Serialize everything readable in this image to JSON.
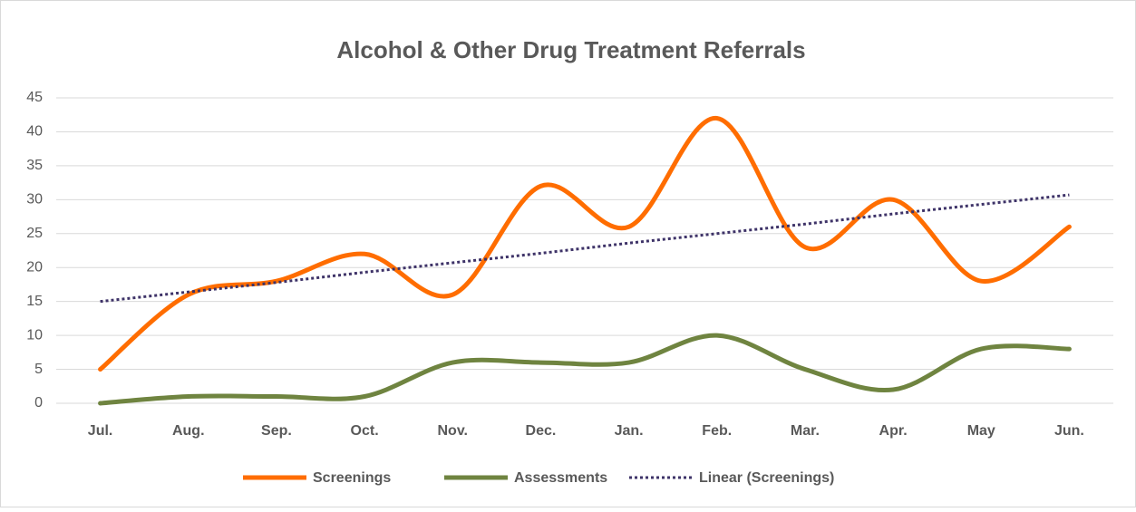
{
  "chart_data": {
    "type": "line",
    "title": "Alcohol & Other Drug Treatment Referrals",
    "categories": [
      "Jul.",
      "Aug.",
      "Sep.",
      "Oct.",
      "Nov.",
      "Dec.",
      "Jan.",
      "Feb.",
      "Mar.",
      "Apr.",
      "May",
      "Jun."
    ],
    "series": [
      {
        "name": "Screenings",
        "color": "#ff6d00",
        "style": "solid",
        "smooth": true,
        "values": [
          5,
          16,
          18,
          22,
          16,
          32,
          26,
          42,
          23,
          30,
          18,
          26
        ]
      },
      {
        "name": "Assessments",
        "color": "#6f8440",
        "style": "solid",
        "smooth": true,
        "values": [
          0,
          1,
          1,
          1,
          6,
          6,
          6,
          10,
          5,
          2,
          8,
          8
        ]
      },
      {
        "name": "Linear (Screenings)",
        "color": "#3e3368",
        "style": "dotted",
        "smooth": false,
        "values": [
          15.0,
          16.4,
          17.8,
          19.3,
          20.7,
          22.1,
          23.6,
          25.0,
          26.4,
          27.9,
          29.3,
          30.7
        ]
      }
    ],
    "ylim": [
      0,
      45
    ],
    "yticks": [
      0,
      5,
      10,
      15,
      20,
      25,
      30,
      35,
      40,
      45
    ],
    "grid": true,
    "legend": "bottom"
  }
}
